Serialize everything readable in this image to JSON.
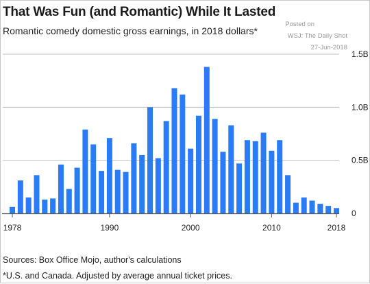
{
  "header": {
    "title": "That Was Fun (and Romantic) While It Lasted",
    "subtitle": "Romantic comedy domestic gross earnings, in 2018 dollars*"
  },
  "watermark": {
    "line1": "Posted on",
    "line2": "WSJ: The Daily Shot",
    "line3": "27-Jun-2018"
  },
  "footer": {
    "sources": "Sources: Box Office Mojo, author's calculations",
    "note": "*U.S. and Canada. Adjusted by average annual ticket prices."
  },
  "colors": {
    "bar": "#2a7bf6",
    "grid": "#bfbfbf",
    "axis": "#555555",
    "text": "#222222"
  },
  "chart_data": {
    "type": "bar",
    "x": [
      1978,
      1979,
      1980,
      1981,
      1982,
      1983,
      1984,
      1985,
      1986,
      1987,
      1988,
      1989,
      1990,
      1991,
      1992,
      1993,
      1994,
      1995,
      1996,
      1997,
      1998,
      1999,
      2000,
      2001,
      2002,
      2003,
      2004,
      2005,
      2006,
      2007,
      2008,
      2009,
      2010,
      2011,
      2012,
      2013,
      2014,
      2015,
      2016,
      2017,
      2018
    ],
    "values": [
      0.06,
      0.31,
      0.15,
      0.36,
      0.13,
      0.14,
      0.46,
      0.23,
      0.43,
      0.79,
      0.65,
      0.4,
      0.71,
      0.41,
      0.39,
      0.66,
      0.55,
      1.0,
      0.52,
      0.87,
      1.18,
      1.12,
      0.61,
      0.92,
      1.38,
      0.89,
      0.58,
      0.83,
      0.47,
      0.69,
      0.68,
      0.76,
      0.59,
      0.69,
      0.36,
      0.1,
      0.15,
      0.12,
      0.09,
      0.07,
      0.05
    ],
    "unit": "billions of 2018 dollars",
    "x_ticks": [
      1978,
      1990,
      2000,
      2010,
      2018
    ],
    "y_ticks": [
      0,
      0.5,
      1.0,
      1.5
    ],
    "y_tick_labels": [
      "0",
      "0.5B",
      "1.0B",
      "1.5B"
    ],
    "xlim": [
      1978,
      2018
    ],
    "ylim": [
      0,
      1.5
    ],
    "y_axis_side": "right",
    "grid": "horizontal"
  }
}
